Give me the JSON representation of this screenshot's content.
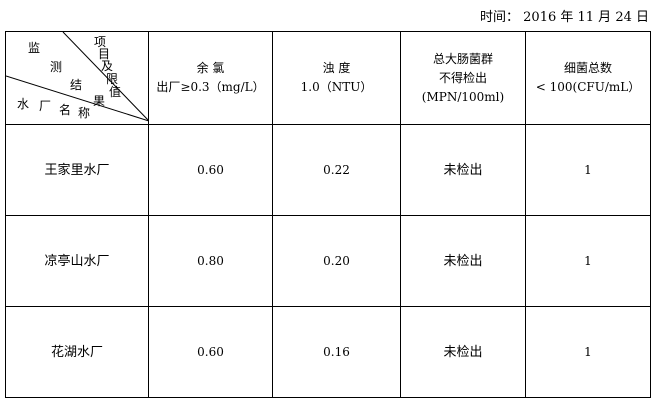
{
  "date_label": "时间： 2016 年 11 月 24 日",
  "corner": {
    "chars_top_left": [
      "监",
      "测",
      "结",
      "果"
    ],
    "chars_top_right": [
      "项",
      "目",
      "及",
      "限",
      "值"
    ],
    "chars_bottom": [
      "水",
      "厂",
      "名",
      "称"
    ]
  },
  "headers": [
    {
      "lines": [
        "余 氯",
        "出厂≥0.3（mg/L）"
      ]
    },
    {
      "lines": [
        "浊 度",
        "1.0（NTU）"
      ]
    },
    {
      "lines": [
        "总大肠菌群",
        "不得检出",
        "(MPN/100ml)"
      ]
    },
    {
      "lines": [
        "细菌总数",
        "< 100(CFU/mL）"
      ]
    }
  ],
  "rows": [
    {
      "name": "王家里水厂",
      "values": [
        "0.60",
        "0.22",
        "未检出",
        "1"
      ]
    },
    {
      "name": "凉亭山水厂",
      "values": [
        "0.80",
        "0.20",
        "未检出",
        "1"
      ]
    },
    {
      "name": "花湖水厂",
      "values": [
        "0.60",
        "0.16",
        "未检出",
        "1"
      ]
    }
  ]
}
